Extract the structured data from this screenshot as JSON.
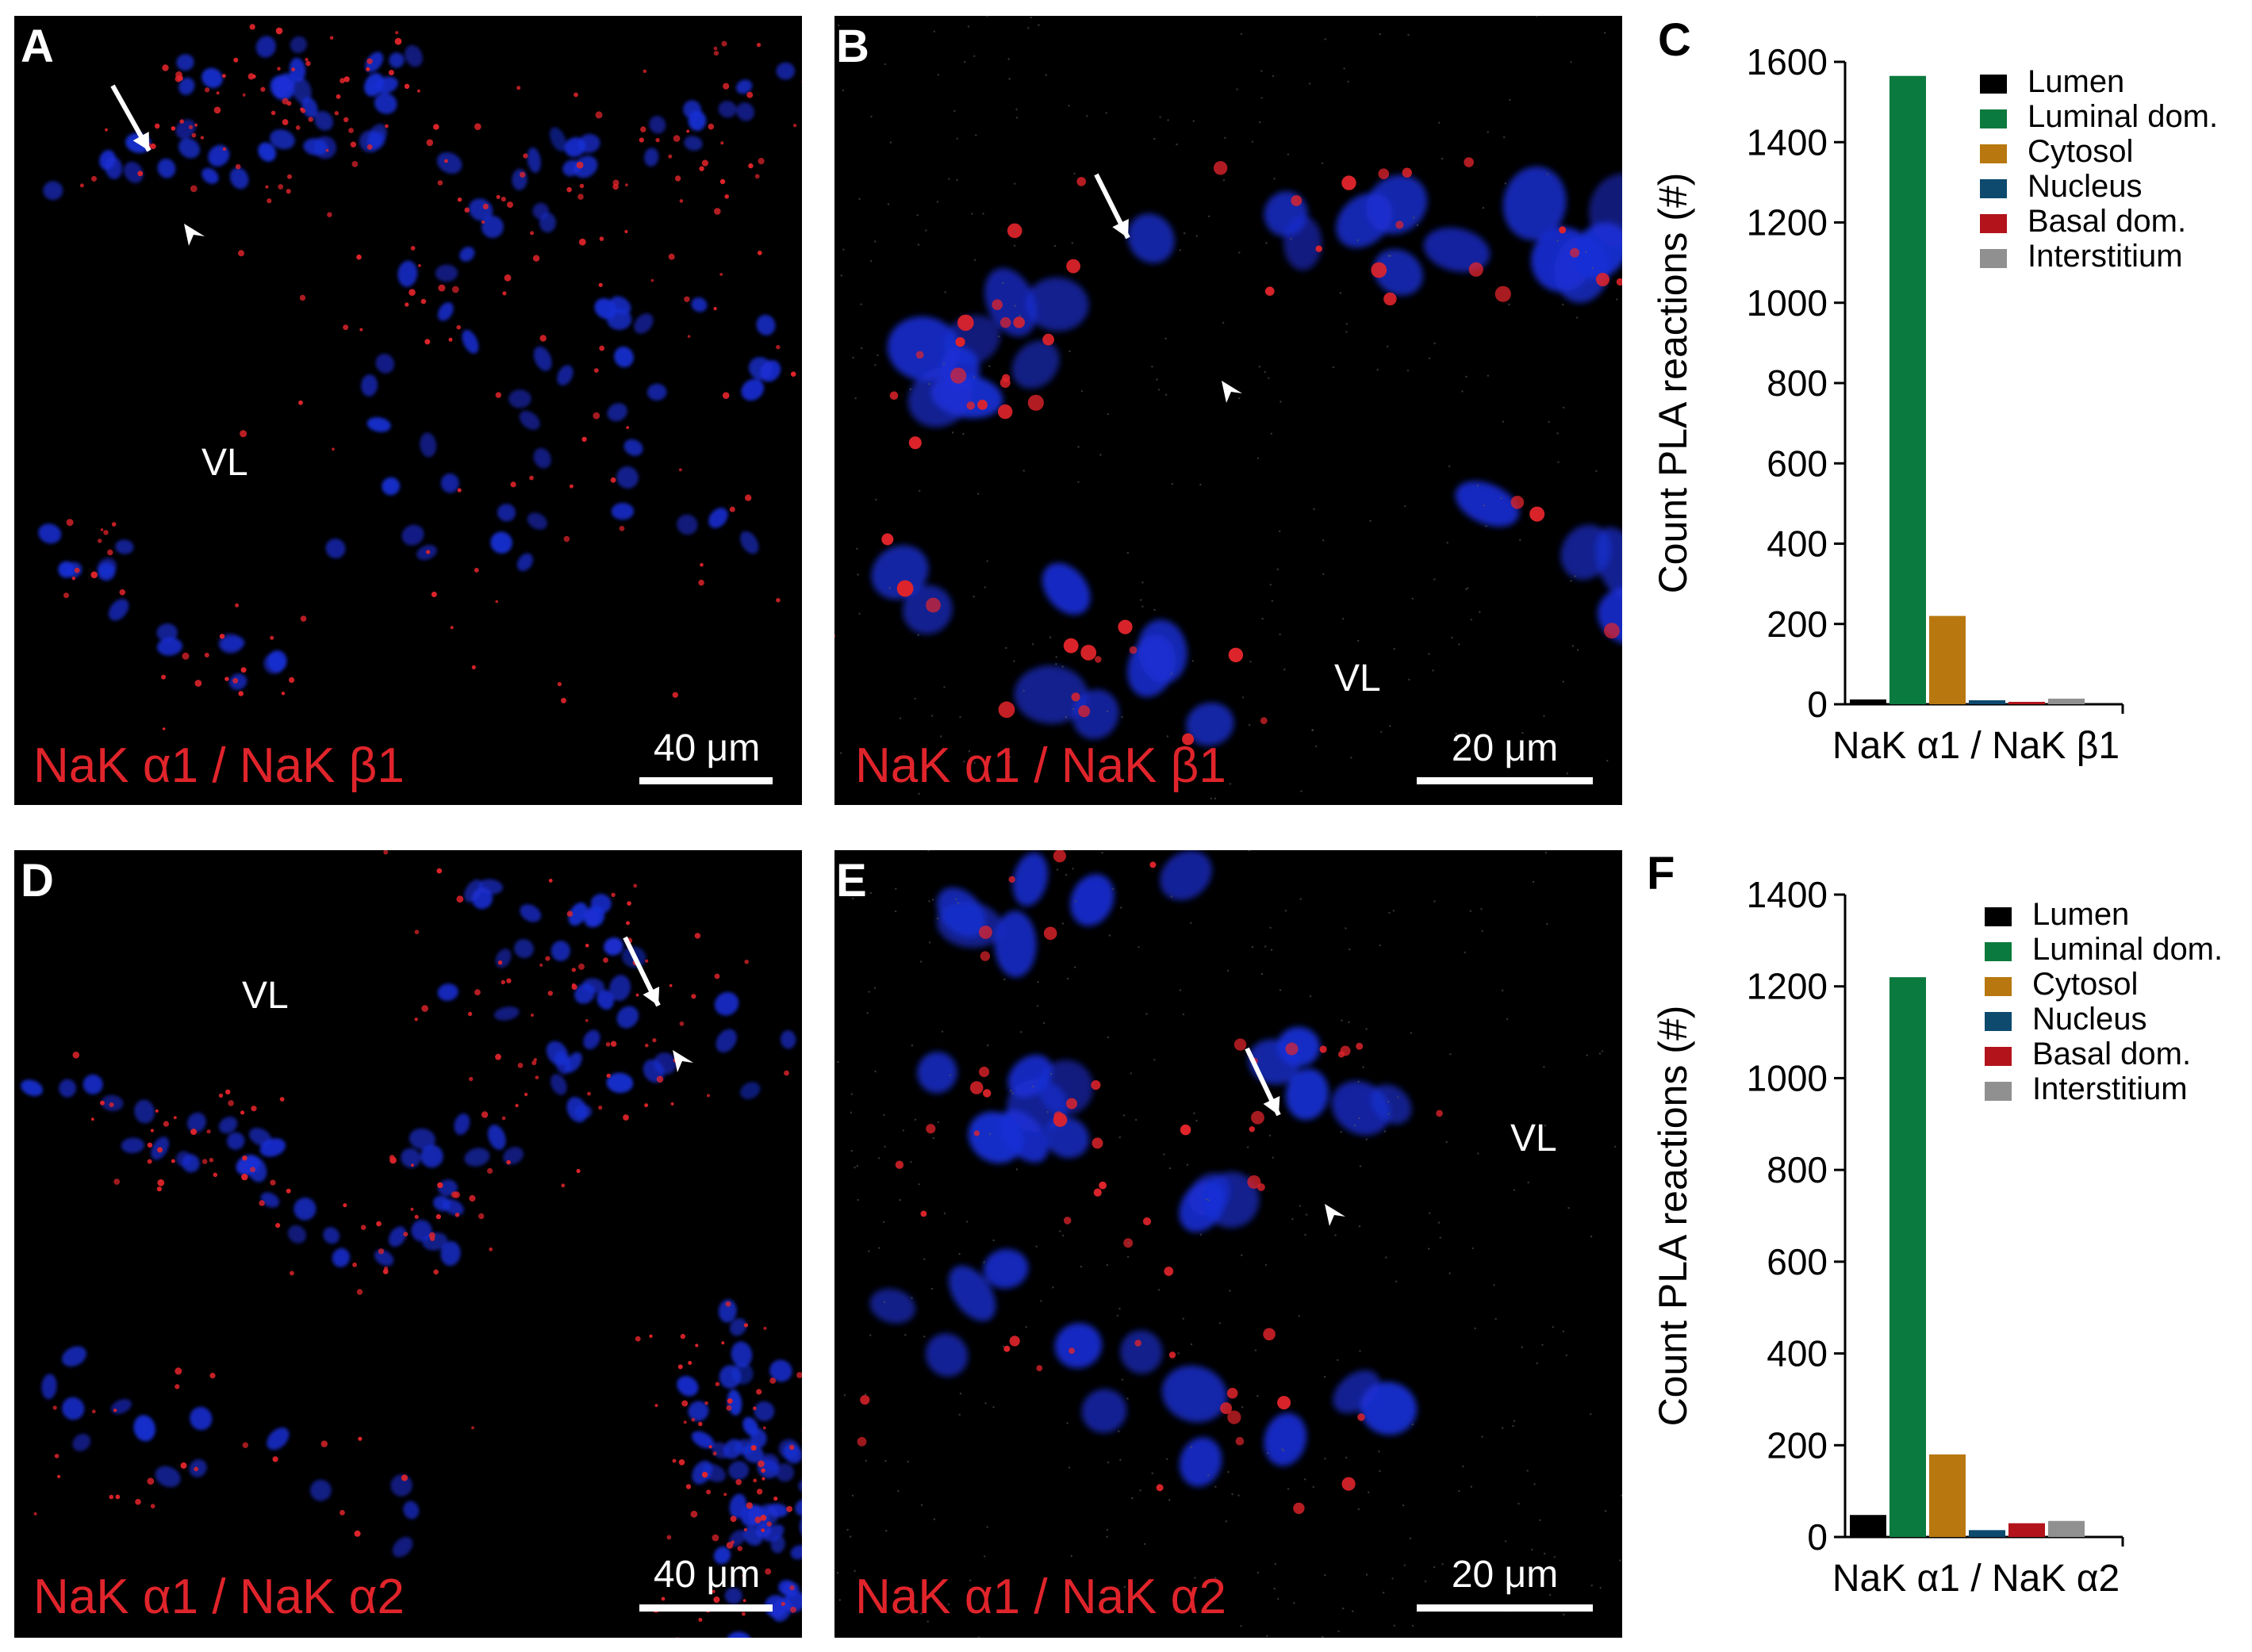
{
  "figure": {
    "panels": [
      {
        "id": "A",
        "label": "A",
        "caption": "NaK α1 / NaK β1",
        "scalebar": "40 μm",
        "region": "VL"
      },
      {
        "id": "B",
        "label": "B",
        "caption": "NaK α1 / NaK β1",
        "scalebar": "20 μm",
        "region": "VL"
      },
      {
        "id": "D",
        "label": "D",
        "caption": "NaK α1 / NaK α2",
        "scalebar": "40 μm",
        "region": "VL"
      },
      {
        "id": "E",
        "label": "E",
        "caption": "NaK α1 / NaK α2",
        "scalebar": "20 μm",
        "region": "VL"
      }
    ],
    "chart_labels": {
      "C": "C",
      "F": "F"
    },
    "colors": {
      "nucleus": "#1a2fd6",
      "pla": "#e0242b",
      "caption": "#e0242b",
      "panel_bg": "#000000"
    }
  },
  "chart_data": [
    {
      "panel": "C",
      "type": "bar",
      "categories": [
        "NaK α1 / NaK β1"
      ],
      "ylabel": "Count PLA reactions (#)",
      "xlabel": "",
      "ylim": [
        0,
        1600
      ],
      "yticks": [
        0,
        200,
        400,
        600,
        800,
        1000,
        1200,
        1400,
        1600
      ],
      "legend_position": "top-right",
      "series": [
        {
          "name": "Lumen",
          "color": "#000000",
          "values": [
            12
          ]
        },
        {
          "name": "Luminal dom.",
          "color": "#0b7a3e",
          "values": [
            1565
          ]
        },
        {
          "name": "Cytosol",
          "color": "#b8780f",
          "values": [
            220
          ]
        },
        {
          "name": "Nucleus",
          "color": "#0d4a6e",
          "values": [
            10
          ]
        },
        {
          "name": "Basal dom.",
          "color": "#b3141c",
          "values": [
            6
          ]
        },
        {
          "name": "Interstitium",
          "color": "#909090",
          "values": [
            14
          ]
        }
      ]
    },
    {
      "panel": "F",
      "type": "bar",
      "categories": [
        "NaK α1 / NaK α2"
      ],
      "ylabel": "Count PLA reactions (#)",
      "xlabel": "",
      "ylim": [
        0,
        1400
      ],
      "yticks": [
        0,
        200,
        400,
        600,
        800,
        1000,
        1200,
        1400
      ],
      "legend_position": "top-right",
      "series": [
        {
          "name": "Lumen",
          "color": "#000000",
          "values": [
            48
          ]
        },
        {
          "name": "Luminal dom.",
          "color": "#0b7a3e",
          "values": [
            1220
          ]
        },
        {
          "name": "Cytosol",
          "color": "#b8780f",
          "values": [
            180
          ]
        },
        {
          "name": "Nucleus",
          "color": "#0d4a6e",
          "values": [
            15
          ]
        },
        {
          "name": "Basal dom.",
          "color": "#b3141c",
          "values": [
            30
          ]
        },
        {
          "name": "Interstitium",
          "color": "#909090",
          "values": [
            35
          ]
        }
      ]
    }
  ]
}
